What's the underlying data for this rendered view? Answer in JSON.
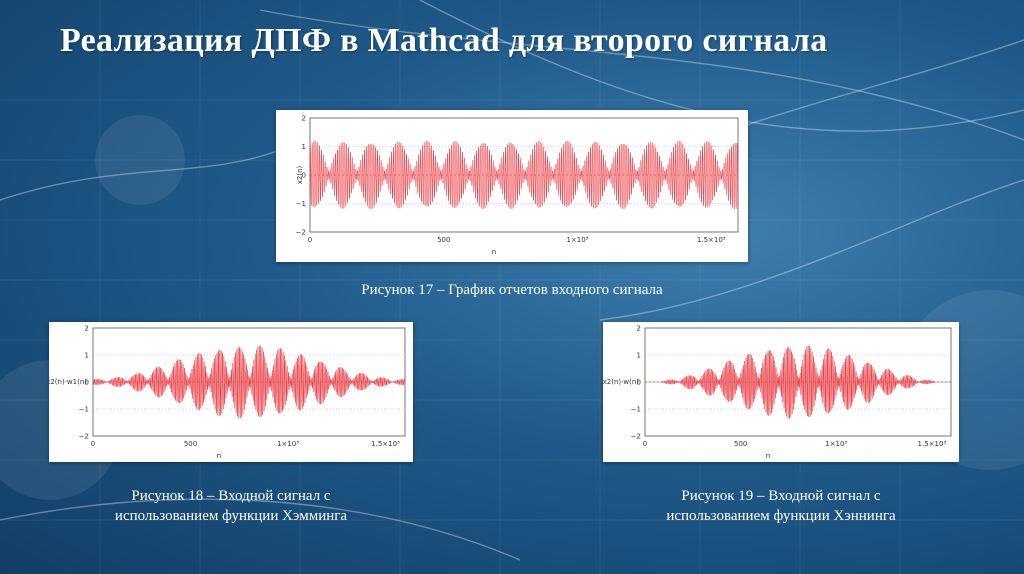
{
  "slide": {
    "title": "Реализация ДПФ в Mathcad для второго сигнала"
  },
  "figures": [
    {
      "id": "fig17",
      "caption_lines": [
        "Рисунок 17 – График отчетов входного сигнала"
      ],
      "ylabel": "x2(n)",
      "xlabel": "n",
      "yticks": [
        "2",
        "1",
        "0",
        "−1",
        "−2"
      ],
      "xticks": [
        "0",
        "500",
        "1×10³",
        "1.5×10³"
      ],
      "envelope": "flat"
    },
    {
      "id": "fig18",
      "caption_lines": [
        "Рисунок 18 – Входной сигнал с",
        "использованием функции Хэмминга"
      ],
      "ylabel": "x2(n)·w1(n)",
      "xlabel": "n",
      "yticks": [
        "2",
        "1",
        "0",
        "−1",
        "−2"
      ],
      "xticks": [
        "0",
        "500",
        "1×10³",
        "1.5×10³"
      ],
      "envelope": "hamming"
    },
    {
      "id": "fig19",
      "caption_lines": [
        "Рисунок 19 – Входной сигнал с",
        "использованием функции Хэннинга"
      ],
      "ylabel": "x2(n)·w(n)",
      "xlabel": "n",
      "yticks": [
        "2",
        "1",
        "0",
        "−1",
        "−2"
      ],
      "xticks": [
        "0",
        "500",
        "1×10³",
        "1.5×10³"
      ],
      "envelope": "hanning"
    }
  ],
  "colors": {
    "signal": "#e8141c",
    "plot_bg": "#ffffff",
    "text": "#ffffff"
  }
}
